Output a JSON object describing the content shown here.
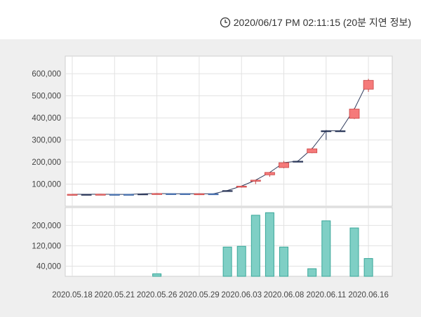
{
  "timestamp": {
    "icon": "clock-icon",
    "text": "2020/06/17 PM 02:11:15 (20분 지연 정보)"
  },
  "chart_data": {
    "type": "candlestick",
    "price_axis": {
      "ticks": [
        100000,
        200000,
        300000,
        400000,
        500000,
        600000
      ],
      "tick_labels": [
        "100,000",
        "200,000",
        "300,000",
        "400,000",
        "500,000",
        "600,000"
      ],
      "ylim": [
        0,
        680000
      ]
    },
    "volume_axis": {
      "ticks": [
        40000,
        120000,
        200000
      ],
      "tick_labels": [
        "40,000",
        "120,000",
        "200,000"
      ],
      "ylim": [
        0,
        270000
      ]
    },
    "x_tick_labels": [
      "2020.05.18",
      "2020.05.21",
      "2020.05.26",
      "2020.05.29",
      "2020.06.03",
      "2020.06.08",
      "2020.06.11",
      "2020.06.16"
    ],
    "x_tick_days": [
      0,
      3,
      6,
      9,
      12,
      15,
      18,
      21
    ],
    "colors": {
      "up": "#f57a7a",
      "down": "#5b86c5",
      "flat": "#2f3b5c",
      "line": "#2f3b5c",
      "volume": "#7fcfc5",
      "volume_edge": "#3aa79a"
    },
    "candles": [
      {
        "open": 53000,
        "high": 55000,
        "low": 52000,
        "close": 54000
      },
      {
        "open": 54000,
        "high": 55000,
        "low": 53000,
        "close": 54000
      },
      {
        "open": 53500,
        "high": 55000,
        "low": 52000,
        "close": 54500
      },
      {
        "open": 54000,
        "high": 55000,
        "low": 53000,
        "close": 53500
      },
      {
        "open": 54000,
        "high": 55000,
        "low": 53000,
        "close": 53500
      },
      {
        "open": 56000,
        "high": 57000,
        "low": 55000,
        "close": 56000
      },
      {
        "open": 56000,
        "high": 58000,
        "low": 55000,
        "close": 57500
      },
      {
        "open": 57000,
        "high": 58000,
        "low": 56000,
        "close": 56500
      },
      {
        "open": 57000,
        "high": 58000,
        "low": 56000,
        "close": 56500
      },
      {
        "open": 56000,
        "high": 58000,
        "low": 55000,
        "close": 56500
      },
      {
        "open": 56500,
        "high": 58000,
        "low": 55000,
        "close": 56000
      },
      {
        "open": 71000,
        "high": 73000,
        "low": 70000,
        "close": 71000
      },
      {
        "open": 86000,
        "high": 93000,
        "low": 84000,
        "close": 91000
      },
      {
        "open": 113000,
        "high": 120000,
        "low": 100000,
        "close": 118000
      },
      {
        "open": 142000,
        "high": 155000,
        "low": 133000,
        "close": 153000
      },
      {
        "open": 175000,
        "high": 205000,
        "low": 172000,
        "close": 197000
      },
      {
        "open": 204000,
        "high": 207000,
        "low": 203000,
        "close": 204000
      },
      {
        "open": 242000,
        "high": 265000,
        "low": 240000,
        "close": 260000
      },
      {
        "open": 342000,
        "high": 345000,
        "low": 300000,
        "close": 342000
      },
      {
        "open": 342000,
        "high": 345000,
        "low": 340000,
        "close": 342000
      },
      {
        "open": 398000,
        "high": 445000,
        "low": 395000,
        "close": 440000
      },
      {
        "open": 530000,
        "high": 577000,
        "low": 518000,
        "close": 570000
      }
    ],
    "volumes": [
      0,
      0,
      0,
      0,
      0,
      0,
      10000,
      0,
      0,
      0,
      0,
      115000,
      118000,
      240000,
      250000,
      115000,
      0,
      30000,
      218000,
      0,
      190000,
      70000
    ]
  }
}
